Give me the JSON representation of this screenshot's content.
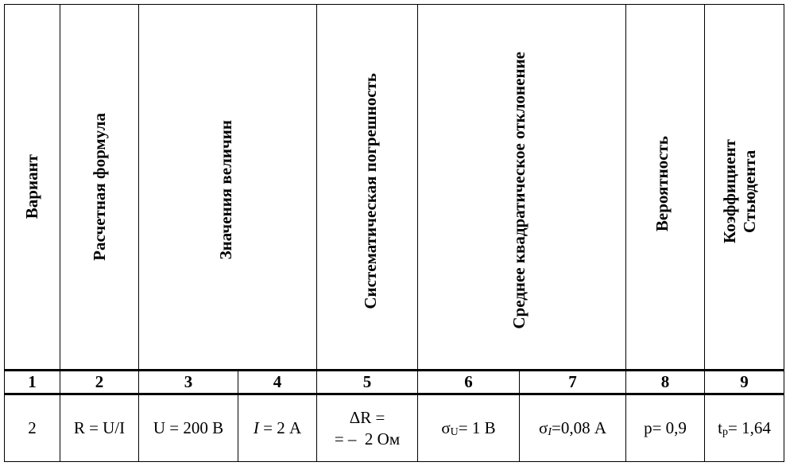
{
  "headers": [
    {
      "num": "1",
      "lines": [
        "Вариант"
      ]
    },
    {
      "num": "2",
      "lines": [
        "Расчетная  формула"
      ]
    },
    {
      "group": "Значения величин",
      "nums": [
        "3",
        "4"
      ]
    },
    {
      "num": "5",
      "lines": [
        "Систематическая погрешность"
      ]
    },
    {
      "group": "Среднее квадратическое отклонение",
      "nums": [
        "6",
        "7"
      ]
    },
    {
      "num": "8",
      "lines": [
        "Вероятность"
      ]
    },
    {
      "num": "9",
      "lines": [
        "Коэффициент",
        "Стьюдента"
      ]
    }
  ],
  "row": {
    "variant": "2",
    "formula": "R = U/I",
    "voltage": "U = 200 В",
    "current_sym": "I",
    "current_val": " = 2 А",
    "delta_line1": "ΔR =",
    "delta_line2": "= –  2 Ом",
    "sigma_u_sym": "σ",
    "sigma_u_sub": "U",
    "sigma_u_val": "= 1 В",
    "sigma_i_sym": "σ",
    "sigma_i_sub": "I",
    "sigma_i_val": "=0,08 А",
    "probability": "p= 0,9",
    "student_sym": "t",
    "student_sub": "p",
    "student_val": "= 1,64"
  }
}
